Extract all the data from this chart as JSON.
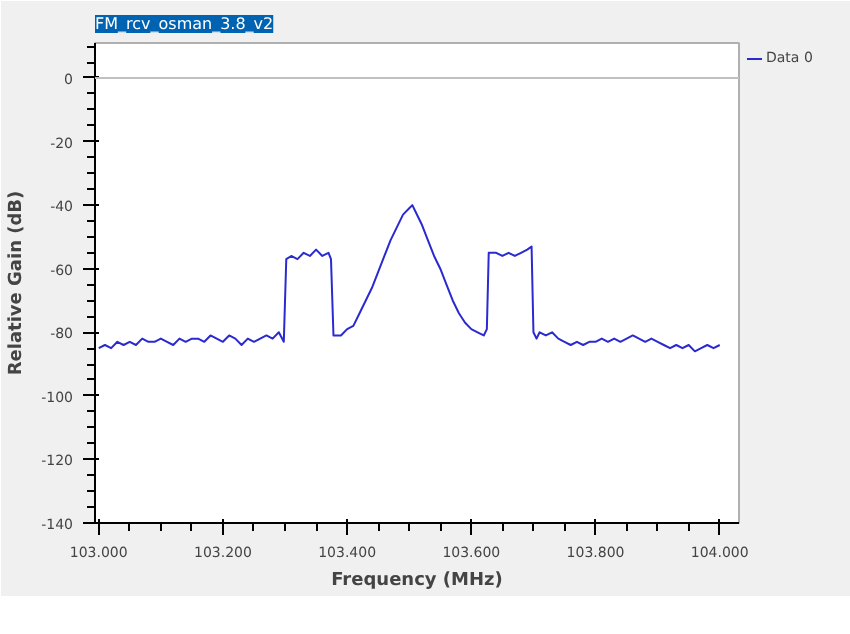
{
  "chart_data": {
    "type": "line",
    "title": "FM_rcv_osman_3.8_v2",
    "xlabel": "Frequency (MHz)",
    "ylabel": "Relative Gain (dB)",
    "xlim": [
      102.994,
      104.031
    ],
    "ylim": [
      -140,
      11
    ],
    "xticks": [
      {
        "value": 103.0,
        "label": "103.000"
      },
      {
        "value": 103.2,
        "label": "103.200"
      },
      {
        "value": 103.4,
        "label": "103.400"
      },
      {
        "value": 103.6,
        "label": "103.600"
      },
      {
        "value": 103.8,
        "label": "103.800"
      },
      {
        "value": 104.0,
        "label": "104.000"
      }
    ],
    "yticks": [
      -140,
      -120,
      -100,
      -80,
      -60,
      -40,
      -20,
      0
    ],
    "grid": false,
    "legend": "top right",
    "marker": "none",
    "line_style": "solid",
    "ref_lines": [
      {
        "axis": "y",
        "value": 0,
        "color": "#c0c0c0"
      }
    ],
    "series": [
      {
        "name": "Data 0",
        "color": "#2a2ad0",
        "x": [
          103.0,
          103.01,
          103.02,
          103.03,
          103.04,
          103.05,
          103.06,
          103.07,
          103.08,
          103.09,
          103.1,
          103.11,
          103.12,
          103.13,
          103.14,
          103.15,
          103.16,
          103.17,
          103.18,
          103.19,
          103.2,
          103.21,
          103.22,
          103.23,
          103.24,
          103.25,
          103.26,
          103.27,
          103.28,
          103.29,
          103.298,
          103.302,
          103.31,
          103.32,
          103.33,
          103.34,
          103.35,
          103.36,
          103.37,
          103.374,
          103.378,
          103.39,
          103.4,
          103.41,
          103.42,
          103.43,
          103.44,
          103.45,
          103.46,
          103.47,
          103.48,
          103.49,
          103.5,
          103.505,
          103.51,
          103.52,
          103.53,
          103.54,
          103.55,
          103.56,
          103.57,
          103.58,
          103.59,
          103.6,
          103.61,
          103.62,
          103.625,
          103.628,
          103.64,
          103.65,
          103.66,
          103.67,
          103.68,
          103.69,
          103.697,
          103.7,
          103.705,
          103.71,
          103.72,
          103.73,
          103.74,
          103.75,
          103.76,
          103.77,
          103.78,
          103.79,
          103.8,
          103.81,
          103.82,
          103.83,
          103.84,
          103.85,
          103.86,
          103.87,
          103.88,
          103.89,
          103.9,
          103.91,
          103.92,
          103.93,
          103.94,
          103.95,
          103.96,
          103.97,
          103.98,
          103.99,
          104.0
        ],
        "values": [
          -85,
          -84,
          -85,
          -83,
          -84,
          -83,
          -84,
          -82,
          -83,
          -83,
          -82,
          -83,
          -84,
          -82,
          -83,
          -82,
          -82,
          -83,
          -81,
          -82,
          -83,
          -81,
          -82,
          -84,
          -82,
          -83,
          -82,
          -81,
          -82,
          -80,
          -83,
          -57,
          -56,
          -57,
          -55,
          -56,
          -54,
          -56,
          -55,
          -57,
          -81,
          -81,
          -79,
          -78,
          -74,
          -70,
          -66,
          -61,
          -56,
          -51,
          -47,
          -43,
          -41,
          -40,
          -42,
          -46,
          -51,
          -56,
          -60,
          -65,
          -70,
          -74,
          -77,
          -79,
          -80,
          -81,
          -79,
          -55,
          -55,
          -56,
          -55,
          -56,
          -55,
          -54,
          -53,
          -80,
          -82,
          -80,
          -81,
          -80,
          -82,
          -83,
          -84,
          -83,
          -84,
          -83,
          -83,
          -82,
          -83,
          -82,
          -83,
          -82,
          -81,
          -82,
          -83,
          -82,
          -83,
          -84,
          -85,
          -84,
          -85,
          -84,
          -86,
          -85,
          -84,
          -85,
          -84
        ]
      }
    ]
  }
}
